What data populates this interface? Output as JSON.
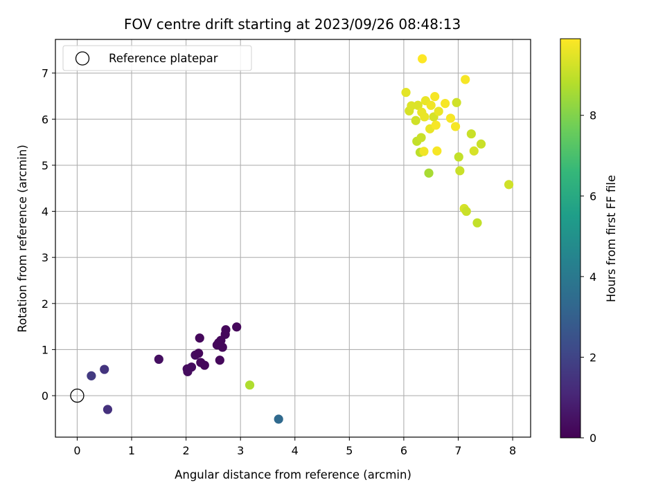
{
  "chart_data": {
    "type": "scatter",
    "title": "FOV centre drift starting at 2023/09/26 08:48:13",
    "xlabel": "Angular distance from reference (arcmin)",
    "ylabel": "Rotation from reference (arcmin)",
    "xlim": [
      -0.4,
      8.33
    ],
    "ylim": [
      -0.9,
      7.73
    ],
    "xticks": [
      0,
      1,
      2,
      3,
      4,
      5,
      6,
      7,
      8
    ],
    "yticks": [
      0,
      1,
      2,
      3,
      4,
      5,
      6,
      7
    ],
    "grid": true,
    "legend": {
      "placement": "top-left",
      "entries": [
        {
          "label": "Reference platepar",
          "marker": "open-circle"
        }
      ]
    },
    "reference_point": {
      "x": 0,
      "y": 0
    },
    "colorbar": {
      "label": "Hours from first FF file",
      "range": [
        0,
        9.9
      ],
      "ticks": [
        0,
        2,
        4,
        6,
        8
      ],
      "colormap": "viridis"
    },
    "points": [
      {
        "x": 0.26,
        "y": 0.43,
        "h": 1.7
      },
      {
        "x": 0.5,
        "y": 0.57,
        "h": 1.5
      },
      {
        "x": 0.56,
        "y": -0.3,
        "h": 1.4
      },
      {
        "x": 1.5,
        "y": 0.79,
        "h": 0.4
      },
      {
        "x": 2.02,
        "y": 0.58,
        "h": 0.3
      },
      {
        "x": 2.03,
        "y": 0.52,
        "h": 0.3
      },
      {
        "x": 2.1,
        "y": 0.62,
        "h": 0.3
      },
      {
        "x": 2.17,
        "y": 0.88,
        "h": 0.3
      },
      {
        "x": 2.23,
        "y": 0.92,
        "h": 0.2
      },
      {
        "x": 2.25,
        "y": 1.25,
        "h": 0.2
      },
      {
        "x": 2.27,
        "y": 0.72,
        "h": 0.2
      },
      {
        "x": 2.34,
        "y": 0.66,
        "h": 0.2
      },
      {
        "x": 2.57,
        "y": 1.1,
        "h": 0.2
      },
      {
        "x": 2.6,
        "y": 1.15,
        "h": 0.2
      },
      {
        "x": 2.62,
        "y": 0.77,
        "h": 0.2
      },
      {
        "x": 2.64,
        "y": 1.2,
        "h": 0.2
      },
      {
        "x": 2.67,
        "y": 1.05,
        "h": 0.2
      },
      {
        "x": 2.72,
        "y": 1.33,
        "h": 0.2
      },
      {
        "x": 2.73,
        "y": 1.43,
        "h": 0.2
      },
      {
        "x": 2.93,
        "y": 1.49,
        "h": 0.2
      },
      {
        "x": 3.17,
        "y": 0.23,
        "h": 8.7
      },
      {
        "x": 3.7,
        "y": -0.51,
        "h": 3.4
      },
      {
        "x": 6.04,
        "y": 6.58,
        "h": 9.5
      },
      {
        "x": 6.1,
        "y": 6.18,
        "h": 9.3
      },
      {
        "x": 6.14,
        "y": 6.29,
        "h": 9.4
      },
      {
        "x": 6.22,
        "y": 5.97,
        "h": 9.2
      },
      {
        "x": 6.24,
        "y": 5.52,
        "h": 9.0
      },
      {
        "x": 6.26,
        "y": 6.3,
        "h": 9.4
      },
      {
        "x": 6.3,
        "y": 5.28,
        "h": 8.9
      },
      {
        "x": 6.32,
        "y": 5.6,
        "h": 9.1
      },
      {
        "x": 6.33,
        "y": 6.15,
        "h": 9.6
      },
      {
        "x": 6.34,
        "y": 7.31,
        "h": 9.9
      },
      {
        "x": 6.37,
        "y": 5.3,
        "h": 9.7
      },
      {
        "x": 6.38,
        "y": 6.05,
        "h": 9.6
      },
      {
        "x": 6.4,
        "y": 6.4,
        "h": 9.6
      },
      {
        "x": 6.46,
        "y": 4.83,
        "h": 8.6
      },
      {
        "x": 6.48,
        "y": 5.79,
        "h": 9.6
      },
      {
        "x": 6.5,
        "y": 6.3,
        "h": 9.7
      },
      {
        "x": 6.55,
        "y": 6.05,
        "h": 9.3
      },
      {
        "x": 6.57,
        "y": 6.49,
        "h": 9.8
      },
      {
        "x": 6.59,
        "y": 5.87,
        "h": 9.8
      },
      {
        "x": 6.61,
        "y": 5.31,
        "h": 9.8
      },
      {
        "x": 6.64,
        "y": 6.17,
        "h": 9.6
      },
      {
        "x": 6.76,
        "y": 6.34,
        "h": 9.8
      },
      {
        "x": 6.86,
        "y": 6.02,
        "h": 9.8
      },
      {
        "x": 6.95,
        "y": 5.84,
        "h": 9.8
      },
      {
        "x": 6.97,
        "y": 6.36,
        "h": 9.2
      },
      {
        "x": 7.01,
        "y": 5.18,
        "h": 9.0
      },
      {
        "x": 7.03,
        "y": 4.88,
        "h": 9.1
      },
      {
        "x": 7.11,
        "y": 4.06,
        "h": 9.3
      },
      {
        "x": 7.13,
        "y": 6.86,
        "h": 9.8
      },
      {
        "x": 7.15,
        "y": 4.0,
        "h": 9.1
      },
      {
        "x": 7.24,
        "y": 5.68,
        "h": 9.1
      },
      {
        "x": 7.29,
        "y": 5.31,
        "h": 9.3
      },
      {
        "x": 7.35,
        "y": 3.75,
        "h": 9.0
      },
      {
        "x": 7.42,
        "y": 5.46,
        "h": 9.1
      },
      {
        "x": 7.93,
        "y": 4.58,
        "h": 9.2
      }
    ]
  }
}
